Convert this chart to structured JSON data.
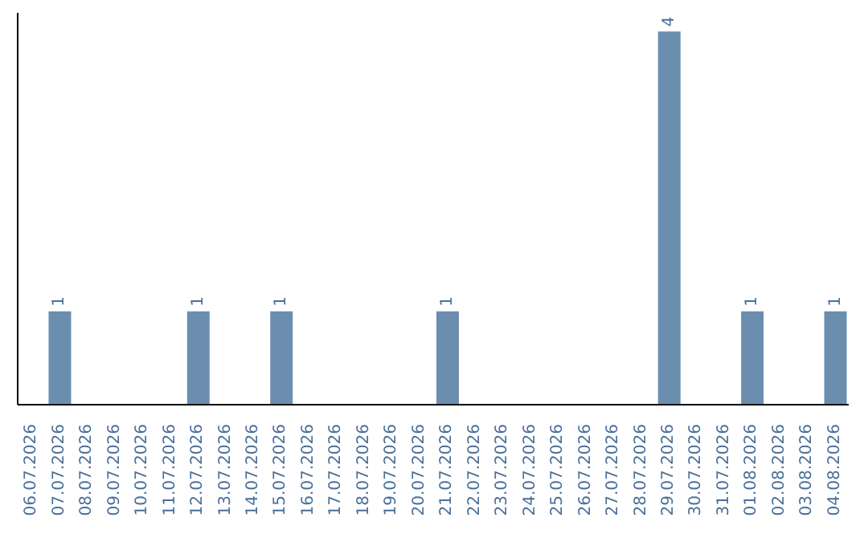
{
  "chart_data": {
    "type": "bar",
    "categories": [
      "06.07.2026",
      "07.07.2026",
      "08.07.2026",
      "09.07.2026",
      "10.07.2026",
      "11.07.2026",
      "12.07.2026",
      "13.07.2026",
      "14.07.2026",
      "15.07.2026",
      "16.07.2026",
      "17.07.2026",
      "18.07.2026",
      "19.07.2026",
      "20.07.2026",
      "21.07.2026",
      "22.07.2026",
      "23.07.2026",
      "24.07.2026",
      "25.07.2026",
      "26.07.2026",
      "27.07.2026",
      "28.07.2026",
      "29.07.2026",
      "30.07.2026",
      "31.07.2026",
      "01.08.2026",
      "02.08.2026",
      "03.08.2026",
      "04.08.2026"
    ],
    "values": [
      0,
      1,
      0,
      0,
      0,
      0,
      1,
      0,
      0,
      1,
      0,
      0,
      0,
      0,
      0,
      1,
      0,
      0,
      0,
      0,
      0,
      0,
      0,
      4,
      0,
      0,
      1,
      0,
      0,
      1
    ],
    "value_labels": [
      null,
      "1",
      null,
      null,
      null,
      null,
      "1",
      null,
      null,
      "1",
      null,
      null,
      null,
      null,
      null,
      "1",
      null,
      null,
      null,
      null,
      null,
      null,
      null,
      "4",
      null,
      null,
      "1",
      null,
      null,
      "1"
    ],
    "color": "#6c8eae",
    "ylim": [
      0,
      4.2
    ],
    "tick_labels": "x",
    "grid": false
  }
}
